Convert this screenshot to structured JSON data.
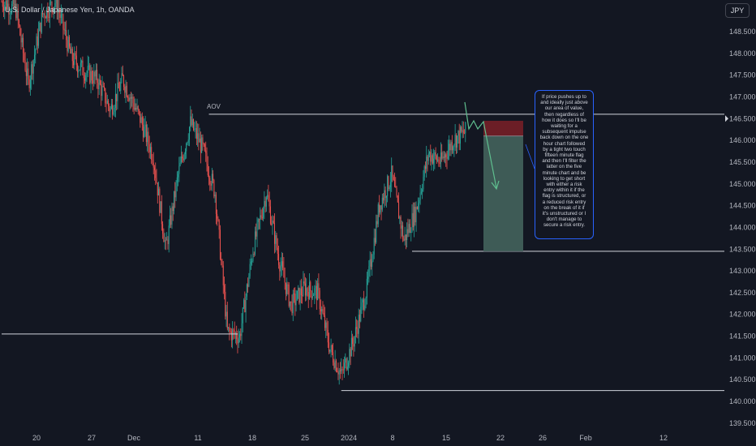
{
  "header": {
    "symbol": "U.S. Dollar / Japanese Yen, 1h, OANDA",
    "currency_button": "JPY"
  },
  "annotations": {
    "aov_label": "AOV",
    "note_lines": [
      "If price pushes up to",
      "and ideally just above",
      "our area of value,",
      "then regardless of",
      "how it does so I'll be",
      "waiting for a",
      "subsequent impulse",
      "back down on the one",
      "hour chart followed",
      "by a tight two touch",
      "fifteen minute flag",
      "and then I'll filter the",
      "latter on the five",
      "minute chart and be",
      "looking to get short",
      "with either a risk",
      "entry within it if the",
      "flag is structured, or",
      "a reduced risk entry",
      "on the break of it if",
      "it's unstructured or I",
      "don't manage to",
      "secure a risk entry."
    ]
  },
  "colors": {
    "background": "#131722",
    "bull": "#26a69a",
    "bear": "#ef5350",
    "line": "#d1d4dc",
    "target": "#3e5b56",
    "stop": "#6b1e26",
    "arrow": "#5fbf8f",
    "note_border": "#2962ff",
    "price_marker": "#d1d4dc"
  },
  "chart_data": {
    "type": "candlestick",
    "title": "U.S. Dollar / Japanese Yen, 1h, OANDA",
    "y_axis": {
      "side": "right",
      "ylim": [
        139.1,
        149.3
      ],
      "ticks": [
        139.5,
        140.0,
        140.5,
        141.0,
        141.5,
        142.0,
        142.5,
        143.0,
        143.5,
        144.0,
        144.5,
        145.0,
        145.5,
        146.0,
        146.5,
        147.0,
        147.5,
        148.0,
        148.5
      ],
      "tick_labels": [
        "139.500",
        "140.000",
        "140.500",
        "141.000",
        "141.500",
        "142.000",
        "142.500",
        "143.000",
        "143.500",
        "144.000",
        "144.500",
        "145.000",
        "145.500",
        "146.000",
        "146.500",
        "147.000",
        "147.500",
        "148.000",
        "148.500"
      ]
    },
    "x_axis": {
      "ticks": [
        "20",
        "27",
        "Dec",
        "11",
        "18",
        "25",
        "2024",
        "8",
        "15",
        "22",
        "26",
        "Feb",
        "12"
      ]
    },
    "price_path": [
      {
        "bar": 0,
        "price": 149.2
      },
      {
        "bar": 14,
        "price": 149.0
      },
      {
        "bar": 26,
        "price": 147.3
      },
      {
        "bar": 40,
        "price": 148.9
      },
      {
        "bar": 53,
        "price": 149.2
      },
      {
        "bar": 68,
        "price": 147.9
      },
      {
        "bar": 80,
        "price": 147.6
      },
      {
        "bar": 93,
        "price": 147.4
      },
      {
        "bar": 106,
        "price": 146.7
      },
      {
        "bar": 118,
        "price": 147.4
      },
      {
        "bar": 135,
        "price": 146.5
      },
      {
        "bar": 148,
        "price": 145.6
      },
      {
        "bar": 160,
        "price": 143.5
      },
      {
        "bar": 172,
        "price": 145.2
      },
      {
        "bar": 184,
        "price": 146.4
      },
      {
        "bar": 196,
        "price": 145.8
      },
      {
        "bar": 208,
        "price": 144.8
      },
      {
        "bar": 220,
        "price": 141.6
      },
      {
        "bar": 232,
        "price": 141.5
      },
      {
        "bar": 245,
        "price": 143.5
      },
      {
        "bar": 258,
        "price": 144.8
      },
      {
        "bar": 270,
        "price": 143.3
      },
      {
        "bar": 282,
        "price": 142.2
      },
      {
        "bar": 295,
        "price": 142.6
      },
      {
        "bar": 308,
        "price": 142.5
      },
      {
        "bar": 320,
        "price": 141.2
      },
      {
        "bar": 331,
        "price": 140.6
      },
      {
        "bar": 343,
        "price": 141.4
      },
      {
        "bar": 356,
        "price": 142.6
      },
      {
        "bar": 368,
        "price": 144.5
      },
      {
        "bar": 380,
        "price": 145.2
      },
      {
        "bar": 392,
        "price": 143.7
      },
      {
        "bar": 404,
        "price": 144.4
      },
      {
        "bar": 416,
        "price": 145.7
      },
      {
        "bar": 428,
        "price": 145.5
      },
      {
        "bar": 440,
        "price": 146.0
      },
      {
        "bar": 452,
        "price": 146.2
      }
    ],
    "levels": [
      {
        "name": "AOV",
        "price": 146.6,
        "from_bar": 202,
        "to_bar": "end"
      },
      {
        "price": 141.55,
        "from_bar": 0,
        "to_bar": 230
      },
      {
        "price": 140.25,
        "from_bar": 331,
        "to_bar": "end"
      },
      {
        "price": 143.45,
        "from_bar": 400,
        "to_bar": "end"
      }
    ],
    "position": {
      "direction": "short",
      "entry": 146.1,
      "stop": 146.45,
      "target": 143.45
    },
    "current_price": 146.5,
    "grid": false,
    "legend": "none"
  }
}
